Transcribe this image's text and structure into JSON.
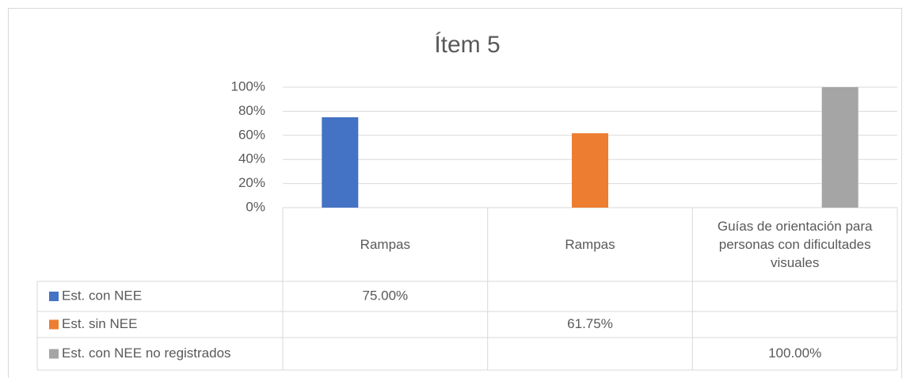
{
  "chart_data": {
    "type": "bar",
    "title": "Ítem 5",
    "categories": [
      "Rampas",
      "Rampas",
      "Guías de orientación para personas con dificultades visuales"
    ],
    "series": [
      {
        "name": "Est. con NEE",
        "color": "#4472c4",
        "values": [
          75,
          null,
          null
        ],
        "value_labels": [
          "75.00%",
          null,
          null
        ]
      },
      {
        "name": "Est. sin NEE",
        "color": "#ed7d31",
        "values": [
          null,
          61.75,
          null
        ],
        "value_labels": [
          null,
          "61.75%",
          null
        ]
      },
      {
        "name": "Est. con NEE no registrados",
        "color": "#a5a5a5",
        "values": [
          null,
          null,
          100
        ],
        "value_labels": [
          null,
          null,
          "100.00%"
        ]
      }
    ],
    "ylim": [
      0,
      100
    ],
    "yticks": [
      {
        "value": 0,
        "label": "0%"
      },
      {
        "value": 20,
        "label": "20%"
      },
      {
        "value": 40,
        "label": "40%"
      },
      {
        "value": 60,
        "label": "60%"
      },
      {
        "value": 80,
        "label": "80%"
      },
      {
        "value": 100,
        "label": "100%"
      }
    ],
    "grid": true,
    "legend": "table"
  }
}
